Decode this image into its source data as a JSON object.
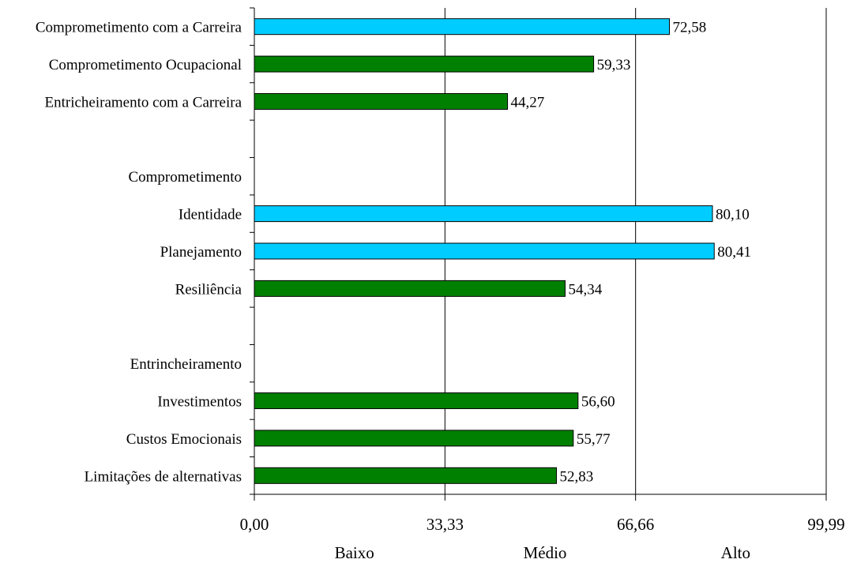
{
  "chart_data": {
    "type": "bar",
    "orientation": "horizontal",
    "title": "",
    "xlabel": "",
    "ylabel": "",
    "xlim": [
      0,
      99.99
    ],
    "x_ticks": [
      "0,00",
      "33,33",
      "66,66",
      "99,99"
    ],
    "x_tick_values": [
      0,
      33.33,
      66.66,
      99.99
    ],
    "zone_labels": [
      "Baixo",
      "Médio",
      "Alto"
    ],
    "grid": "vertical lines at 33,33 and 66,66",
    "legend": "none",
    "colors": {
      "high": "#00CCFF",
      "medium": "#008000"
    },
    "rows": [
      {
        "label": "Comprometimento com a Carreira",
        "value": 72.58,
        "value_label": "72,58",
        "level": "high"
      },
      {
        "label": "Comprometimento Ocupacional",
        "value": 59.33,
        "value_label": "59,33",
        "level": "medium"
      },
      {
        "label": "Entricheiramento com a Carreira",
        "value": 44.27,
        "value_label": "44,27",
        "level": "medium"
      },
      {
        "label": "",
        "value": null,
        "value_label": "",
        "level": ""
      },
      {
        "label": "Comprometimento",
        "value": null,
        "value_label": "",
        "level": ""
      },
      {
        "label": "Identidade",
        "value": 80.1,
        "value_label": "80,10",
        "level": "high"
      },
      {
        "label": "Planejamento",
        "value": 80.41,
        "value_label": "80,41",
        "level": "high"
      },
      {
        "label": "Resiliência",
        "value": 54.34,
        "value_label": "54,34",
        "level": "medium"
      },
      {
        "label": "",
        "value": null,
        "value_label": "",
        "level": ""
      },
      {
        "label": "Entrincheiramento",
        "value": null,
        "value_label": "",
        "level": ""
      },
      {
        "label": "Investimentos",
        "value": 56.6,
        "value_label": "56,60",
        "level": "medium"
      },
      {
        "label": "Custos Emocionais",
        "value": 55.77,
        "value_label": "55,77",
        "level": "medium"
      },
      {
        "label": "Limitações de alternativas",
        "value": 52.83,
        "value_label": "52,83",
        "level": "medium"
      }
    ]
  }
}
